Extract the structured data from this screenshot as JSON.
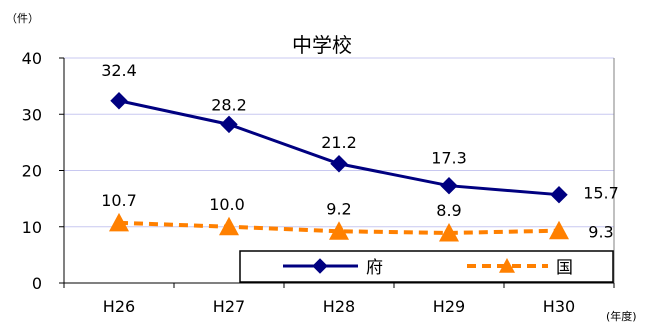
{
  "chart_data": {
    "type": "line",
    "title": "中学校",
    "y_unit": "（件）",
    "x_unit": "(年度)",
    "categories": [
      "H26",
      "H27",
      "H28",
      "H29",
      "H30"
    ],
    "ylim": [
      0,
      40
    ],
    "yticks": [
      0,
      10,
      20,
      30,
      40
    ],
    "grid": true,
    "legend_position": "bottom-right",
    "series": [
      {
        "name": "府",
        "values": [
          32.4,
          28.2,
          21.2,
          17.3,
          15.7
        ],
        "labels": [
          "32.4",
          "28.2",
          "21.2",
          "17.3",
          "15.7"
        ],
        "color": "#000080",
        "style": "solid",
        "marker": "diamond"
      },
      {
        "name": "国",
        "values": [
          10.7,
          10.0,
          9.2,
          8.9,
          9.3
        ],
        "labels": [
          "10.7",
          "10.0",
          "9.2",
          "8.9",
          "9.3"
        ],
        "color": "#FF8000",
        "style": "dashed",
        "marker": "triangle"
      }
    ]
  },
  "colors": {
    "grid": "#C8C8F0",
    "axis": "#000000"
  }
}
